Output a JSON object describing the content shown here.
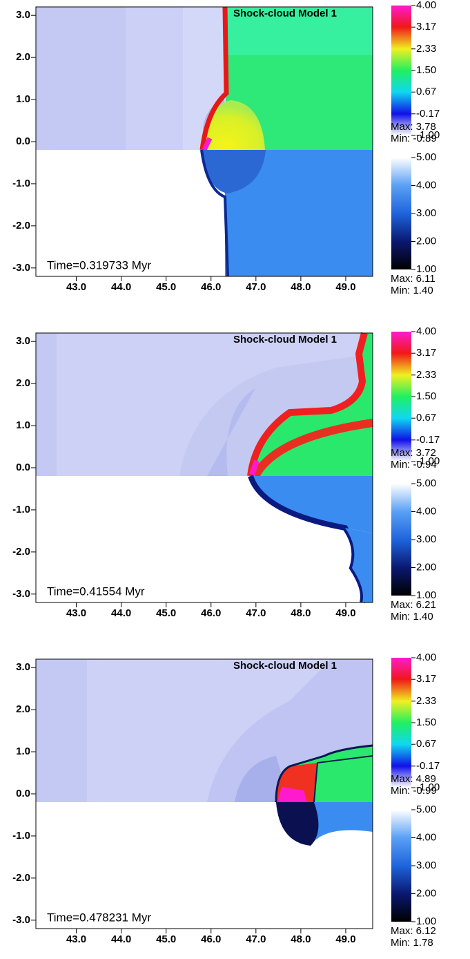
{
  "chart_data": [
    {
      "type": "field",
      "title": "Shock-cloud Model 1",
      "annotation": "Time=0.319733 Myr",
      "xlim": [
        42.1,
        49.6
      ],
      "ylim": [
        -3.2,
        3.2
      ],
      "xticks": [
        {
          "value": 43,
          "label": "43.0"
        },
        {
          "value": 44,
          "label": "44.0"
        },
        {
          "value": 45,
          "label": "45.0"
        },
        {
          "value": 46,
          "label": "46.0"
        },
        {
          "value": 47,
          "label": "47.0"
        },
        {
          "value": 48,
          "label": "48.0"
        },
        {
          "value": 49,
          "label": "49.0"
        }
      ],
      "yticks": [
        {
          "value": 3,
          "label": "3.0"
        },
        {
          "value": 2,
          "label": "2.0"
        },
        {
          "value": 1,
          "label": "1.0"
        },
        {
          "value": 0,
          "label": "0.0"
        },
        {
          "value": -1,
          "label": "-1.0"
        },
        {
          "value": -2,
          "label": "-2.0"
        },
        {
          "value": -3,
          "label": "-3.0"
        }
      ],
      "colorbars": [
        {
          "clim": [
            -1,
            4
          ],
          "ticks": [
            {
              "value": 4,
              "label": "4.00"
            },
            3.17,
            2.33,
            {
              "value": 1.5,
              "label": "1.50"
            },
            0.67,
            -0.17,
            {
              "value": -1,
              "label": "-1.00"
            }
          ],
          "max_label": "Max: 3.78",
          "min_label": "Min: -0.89"
        },
        {
          "clim": [
            1,
            5
          ],
          "ticks": [
            {
              "value": 5,
              "label": "5.00"
            },
            {
              "value": 4,
              "label": "4.00"
            },
            {
              "value": 3,
              "label": "3.00"
            },
            {
              "value": 2,
              "label": "2.00"
            },
            {
              "value": 1,
              "label": "1.00"
            }
          ],
          "max_label": "Max: 6.11",
          "min_label": "Min: 1.40"
        }
      ]
    },
    {
      "type": "field",
      "title": "Shock-cloud Model 1",
      "annotation": "Time=0.41554 Myr",
      "xlim": [
        42.1,
        49.6
      ],
      "ylim": [
        -3.2,
        3.2
      ],
      "xticks": [
        {
          "value": 43,
          "label": "43.0"
        },
        {
          "value": 44,
          "label": "44.0"
        },
        {
          "value": 45,
          "label": "45.0"
        },
        {
          "value": 46,
          "label": "46.0"
        },
        {
          "value": 47,
          "label": "47.0"
        },
        {
          "value": 48,
          "label": "48.0"
        },
        {
          "value": 49,
          "label": "49.0"
        }
      ],
      "yticks": [
        {
          "value": 3,
          "label": "3.0"
        },
        {
          "value": 2,
          "label": "2.0"
        },
        {
          "value": 1,
          "label": "1.0"
        },
        {
          "value": 0,
          "label": "0.0"
        },
        {
          "value": -1,
          "label": "-1.0"
        },
        {
          "value": -2,
          "label": "-2.0"
        },
        {
          "value": -3,
          "label": "-3.0"
        }
      ],
      "colorbars": [
        {
          "clim": [
            -1,
            4
          ],
          "ticks": [
            {
              "value": 4,
              "label": "4.00"
            },
            3.17,
            2.33,
            {
              "value": 1.5,
              "label": "1.50"
            },
            0.67,
            -0.17,
            {
              "value": -1,
              "label": "-1.00"
            }
          ],
          "max_label": "Max: 3.72",
          "min_label": "Min: -0.94"
        },
        {
          "clim": [
            1,
            5
          ],
          "ticks": [
            {
              "value": 5,
              "label": "5.00"
            },
            {
              "value": 4,
              "label": "4.00"
            },
            {
              "value": 3,
              "label": "3.00"
            },
            {
              "value": 2,
              "label": "2.00"
            },
            {
              "value": 1,
              "label": "1.00"
            }
          ],
          "max_label": "Max: 6.21",
          "min_label": "Min: 1.40"
        }
      ]
    },
    {
      "type": "field",
      "title": "Shock-cloud Model 1",
      "annotation": "Time=0.478231 Myr",
      "xlim": [
        42.1,
        49.6
      ],
      "ylim": [
        -3.2,
        3.2
      ],
      "xticks": [
        {
          "value": 43,
          "label": "43.0"
        },
        {
          "value": 44,
          "label": "44.0"
        },
        {
          "value": 45,
          "label": "45.0"
        },
        {
          "value": 46,
          "label": "46.0"
        },
        {
          "value": 47,
          "label": "47.0"
        },
        {
          "value": 48,
          "label": "48.0"
        },
        {
          "value": 49,
          "label": "49.0"
        }
      ],
      "yticks": [
        {
          "value": 3,
          "label": "3.0"
        },
        {
          "value": 2,
          "label": "2.0"
        },
        {
          "value": 1,
          "label": "1.0"
        },
        {
          "value": 0,
          "label": "0.0"
        },
        {
          "value": -1,
          "label": "-1.0"
        },
        {
          "value": -2,
          "label": "-2.0"
        },
        {
          "value": -3,
          "label": "-3.0"
        }
      ],
      "colorbars": [
        {
          "clim": [
            -1,
            4
          ],
          "ticks": [
            {
              "value": 4,
              "label": "4.00"
            },
            3.17,
            2.33,
            {
              "value": 1.5,
              "label": "1.50"
            },
            0.67,
            -0.17,
            {
              "value": -1,
              "label": "-1.00"
            }
          ],
          "max_label": "Max: 4.89",
          "min_label": "Min: -0.99"
        },
        {
          "clim": [
            1,
            5
          ],
          "ticks": [
            {
              "value": 5,
              "label": "5.00"
            },
            {
              "value": 4,
              "label": "4.00"
            },
            {
              "value": 3,
              "label": "3.00"
            },
            {
              "value": 2,
              "label": "2.00"
            },
            {
              "value": 1,
              "label": "1.00"
            }
          ],
          "max_label": "Max: 6.12",
          "min_label": "Min: 1.78"
        }
      ]
    }
  ]
}
